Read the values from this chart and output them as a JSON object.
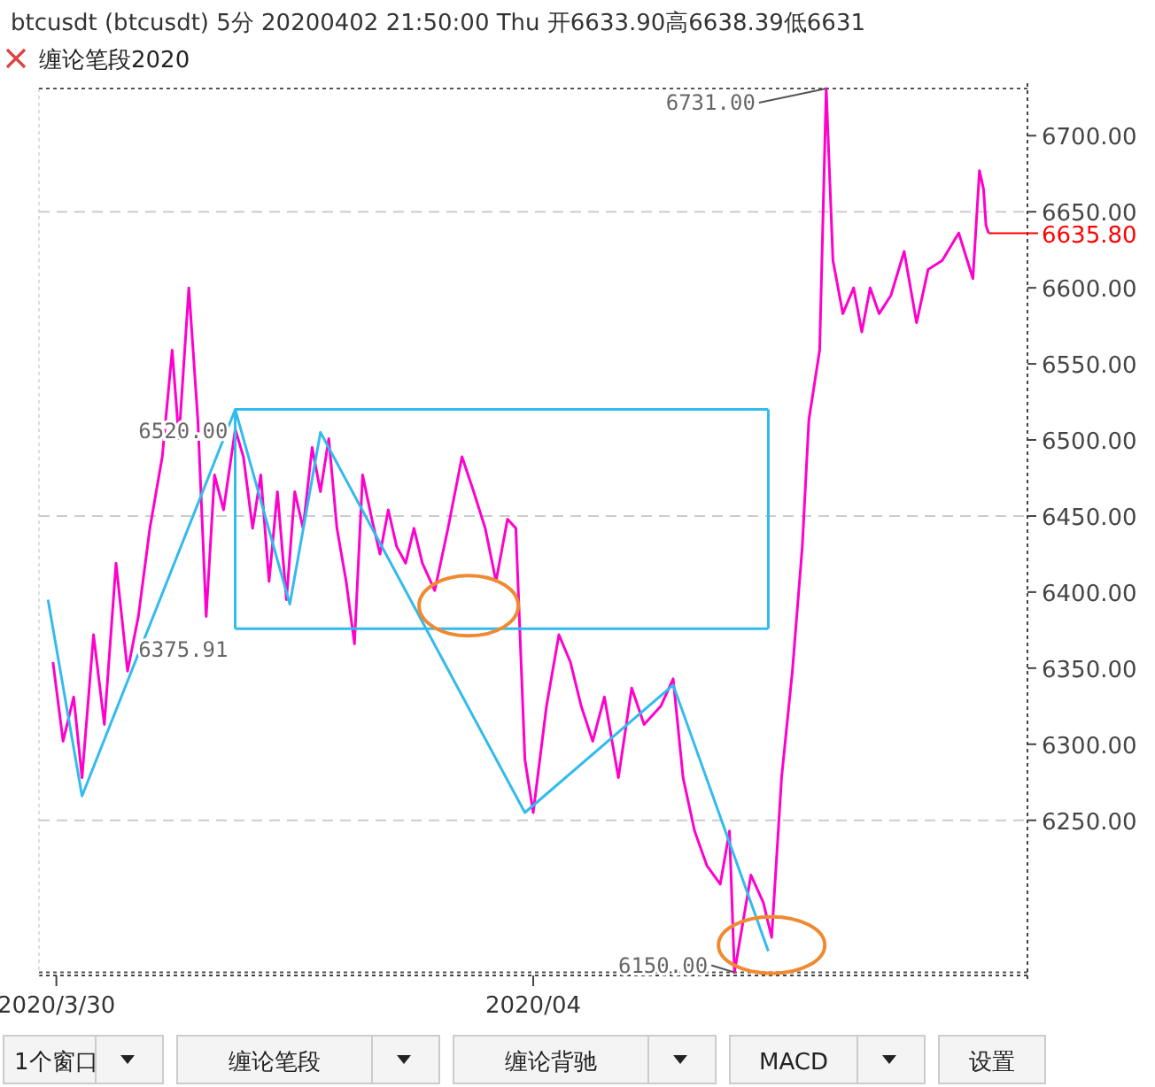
{
  "chart_data": {
    "type": "line",
    "title": "btcusdt (btcusdt) 5分 20200402 21:50:00 Thu    开6633.90高6638.39低6631",
    "subtitle": "缠论笔段2020",
    "xlim": [
      "2020-03-29T22:15",
      "2020-04-03T01:45"
    ],
    "ylim": [
      6148,
      6731
    ],
    "xticks": [
      {
        "value": "2020-03-30",
        "label": "2020/3/30"
      },
      {
        "value": "2020-04-01",
        "label": "2020/04"
      }
    ],
    "yticks": [
      {
        "value": 6250,
        "label": "6250.00"
      },
      {
        "value": 6300,
        "label": "6300.00"
      },
      {
        "value": 6350,
        "label": "6350.00"
      },
      {
        "value": 6400,
        "label": "6400.00"
      },
      {
        "value": 6450,
        "label": "6450.00"
      },
      {
        "value": 6500,
        "label": "6500.00"
      },
      {
        "value": 6550,
        "label": "6550.00"
      },
      {
        "value": 6600,
        "label": "6600.00"
      },
      {
        "value": 6650,
        "label": "6650.00"
      },
      {
        "value": 6700,
        "label": "6700.00"
      }
    ],
    "series": [
      {
        "color": "#ff00cc",
        "x": [
          "2020-03-29T23:40",
          "2020-03-30T00:40",
          "2020-03-30T01:45",
          "2020-03-30T02:35",
          "2020-03-30T03:45",
          "2020-03-30T04:50",
          "2020-03-30T06:00",
          "2020-03-30T07:10",
          "2020-03-30T08:15",
          "2020-03-30T09:25",
          "2020-03-30T10:40",
          "2020-03-30T11:40",
          "2020-03-30T12:20",
          "2020-03-30T13:20",
          "2020-03-30T14:15",
          "2020-03-30T15:05",
          "2020-03-30T15:55",
          "2020-03-30T16:50",
          "2020-03-30T18:00",
          "2020-03-30T18:50",
          "2020-03-30T19:45",
          "2020-03-30T20:35",
          "2020-03-30T21:25",
          "2020-03-30T22:15",
          "2020-03-30T23:10",
          "2020-03-31T00:00",
          "2020-03-31T00:50",
          "2020-03-31T01:45",
          "2020-03-31T02:35",
          "2020-03-31T03:25",
          "2020-03-31T04:15",
          "2020-03-31T05:10",
          "2020-03-31T06:00",
          "2020-03-31T06:50",
          "2020-03-31T07:45",
          "2020-03-31T08:35",
          "2020-03-31T09:25",
          "2020-03-31T10:15",
          "2020-03-31T11:10",
          "2020-03-31T12:00",
          "2020-03-31T12:50",
          "2020-03-31T14:05",
          "2020-03-31T15:25",
          "2020-03-31T16:50",
          "2020-03-31T18:00",
          "2020-03-31T19:10",
          "2020-03-31T20:15",
          "2020-03-31T21:25",
          "2020-03-31T22:15",
          "2020-03-31T23:10",
          "2020-04-01T00:00",
          "2020-04-01T01:20",
          "2020-04-01T02:35",
          "2020-04-01T03:45",
          "2020-04-01T04:50",
          "2020-04-01T06:00",
          "2020-04-01T07:10",
          "2020-04-01T08:35",
          "2020-04-01T09:55",
          "2020-04-01T11:10",
          "2020-04-01T12:50",
          "2020-04-01T14:05",
          "2020-04-01T15:05",
          "2020-04-01T16:15",
          "2020-04-01T17:30",
          "2020-04-01T18:50",
          "2020-04-01T19:45",
          "2020-04-01T20:15",
          "2020-04-01T21:55",
          "2020-04-01T23:10",
          "2020-04-02T00:00",
          "2020-04-02T01:00",
          "2020-04-02T02:05",
          "2020-04-02T03:05",
          "2020-04-02T03:45",
          "2020-04-02T04:50",
          "2020-04-02T05:30",
          "2020-04-02T06:10",
          "2020-04-02T07:10",
          "2020-04-02T08:15",
          "2020-04-02T09:05",
          "2020-04-02T09:55",
          "2020-04-02T10:50",
          "2020-04-02T12:00",
          "2020-04-02T13:20",
          "2020-04-02T14:35",
          "2020-04-02T15:45",
          "2020-04-02T17:10",
          "2020-04-02T18:50",
          "2020-04-02T20:15",
          "2020-04-02T20:55",
          "2020-04-02T21:20",
          "2020-04-02T21:35",
          "2020-04-02T21:50"
        ],
        "values": [
          6354,
          6302,
          6331,
          6278,
          6372,
          6313,
          6419,
          6348,
          6384,
          6442,
          6489,
          6559,
          6501,
          6600,
          6513,
          6384,
          6477,
          6454,
          6507,
          6489,
          6442,
          6477,
          6407,
          6466,
          6395,
          6466,
          6442,
          6495,
          6466,
          6501,
          6442,
          6407,
          6366,
          6477,
          6448,
          6425,
          6454,
          6430,
          6419,
          6442,
          6419,
          6401,
          6442,
          6489,
          6466,
          6442,
          6407,
          6448,
          6442,
          6290,
          6255,
          6325,
          6372,
          6354,
          6325,
          6302,
          6331,
          6278,
          6337,
          6313,
          6325,
          6343,
          6278,
          6243,
          6220,
          6208,
          6243,
          6150,
          6214,
          6196,
          6173,
          6278,
          6348,
          6430,
          6513,
          6559,
          6731,
          6618,
          6583,
          6600,
          6571,
          6600,
          6583,
          6595,
          6624,
          6577,
          6612,
          6618,
          6636,
          6606,
          6677,
          6665,
          6641,
          6636
        ]
      },
      {
        "color": "#33bbee",
        "x": [
          "2020-03-29T23:10",
          "2020-03-30T02:35",
          "2020-03-30T18:00",
          "2020-03-30T23:30",
          "2020-03-31T02:35",
          "2020-03-31T23:10",
          "2020-04-01T14:05",
          "2020-04-01T23:40"
        ],
        "values": [
          6395,
          6266,
          6520,
          6392,
          6505,
          6255,
          6339,
          6164
        ]
      },
      {
        "color": "#33bbee",
        "x": [
          "2020-03-30T18:00",
          "2020-04-01T23:40"
        ],
        "values": [
          6520,
          6520
        ]
      },
      {
        "color": "#33bbee",
        "x": [
          "2020-03-30T18:00",
          "2020-04-01T23:40"
        ],
        "values": [
          6375.91,
          6375.91
        ]
      }
    ],
    "ref_lines": [
      {
        "axis": "y",
        "value": 6250,
        "color": "#cccccc",
        "line_style": "dashed"
      },
      {
        "axis": "y",
        "value": 6450,
        "color": "#cccccc",
        "line_style": "dashed"
      },
      {
        "axis": "y",
        "value": 6650,
        "color": "#cccccc",
        "line_style": "dashed"
      },
      {
        "axis": "y",
        "value": 6731,
        "color": "#555555",
        "line_style": "dotted"
      },
      {
        "axis": "y",
        "value": 6150,
        "color": "#555555",
        "line_style": "dotted"
      }
    ],
    "annotations": [
      {
        "text": "6731.00",
        "x": "2020-04-02T05:30",
        "y": 6731
      },
      {
        "text": "6520.00",
        "x": "2020-03-30T18:00",
        "y": 6520
      },
      {
        "text": "6375.91",
        "x": "2020-03-30T18:00",
        "y": 6375.91
      },
      {
        "text": "6150.00",
        "x": "2020-04-01T20:15",
        "y": 6150
      },
      {
        "text": "6635.80",
        "x": "2020-04-02T21:50",
        "y": 6635.8
      },
      "1个窗口",
      "缠论笔段",
      "缠论背驰",
      "MACD",
      "设置"
    ]
  }
}
